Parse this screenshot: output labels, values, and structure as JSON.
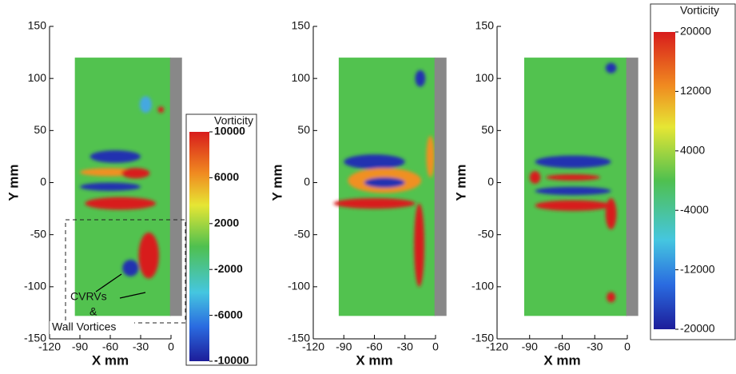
{
  "chart_data": [
    {
      "type": "heatmap",
      "xlabel": "X mm",
      "ylabel": "Y mm",
      "xlim": [
        -120,
        0
      ],
      "ylim": [
        -150,
        150
      ],
      "xticks": [
        -120,
        -90,
        -60,
        -30,
        0
      ],
      "yticks": [
        -150,
        -100,
        -50,
        0,
        50,
        100,
        150
      ],
      "colorbar": {
        "title": "Vorticity",
        "lim": [
          -10000,
          10000
        ],
        "ticks": [
          10000,
          6000,
          2000,
          -2000,
          -6000,
          -10000
        ]
      },
      "annotations": [
        "CVRVs",
        "&",
        "Wall Vortices"
      ]
    },
    {
      "type": "heatmap",
      "xlabel": "X mm",
      "ylabel": "Y mm",
      "xlim": [
        -120,
        0
      ],
      "ylim": [
        -150,
        150
      ],
      "xticks": [
        -120,
        -90,
        -60,
        -30,
        0
      ],
      "yticks": [
        -150,
        -100,
        -50,
        0,
        50,
        100,
        150
      ]
    },
    {
      "type": "heatmap",
      "xlabel": "X mm",
      "ylabel": "Y mm",
      "xlim": [
        -120,
        0
      ],
      "ylim": [
        -150,
        150
      ],
      "xticks": [
        -120,
        -90,
        -60,
        -30,
        0
      ],
      "yticks": [
        -150,
        -100,
        -50,
        0,
        50,
        100,
        150
      ],
      "colorbar": {
        "title": "Vorticity",
        "lim": [
          -20000,
          20000
        ],
        "ticks": [
          20000,
          12000,
          4000,
          -4000,
          -12000,
          -20000
        ]
      }
    }
  ]
}
